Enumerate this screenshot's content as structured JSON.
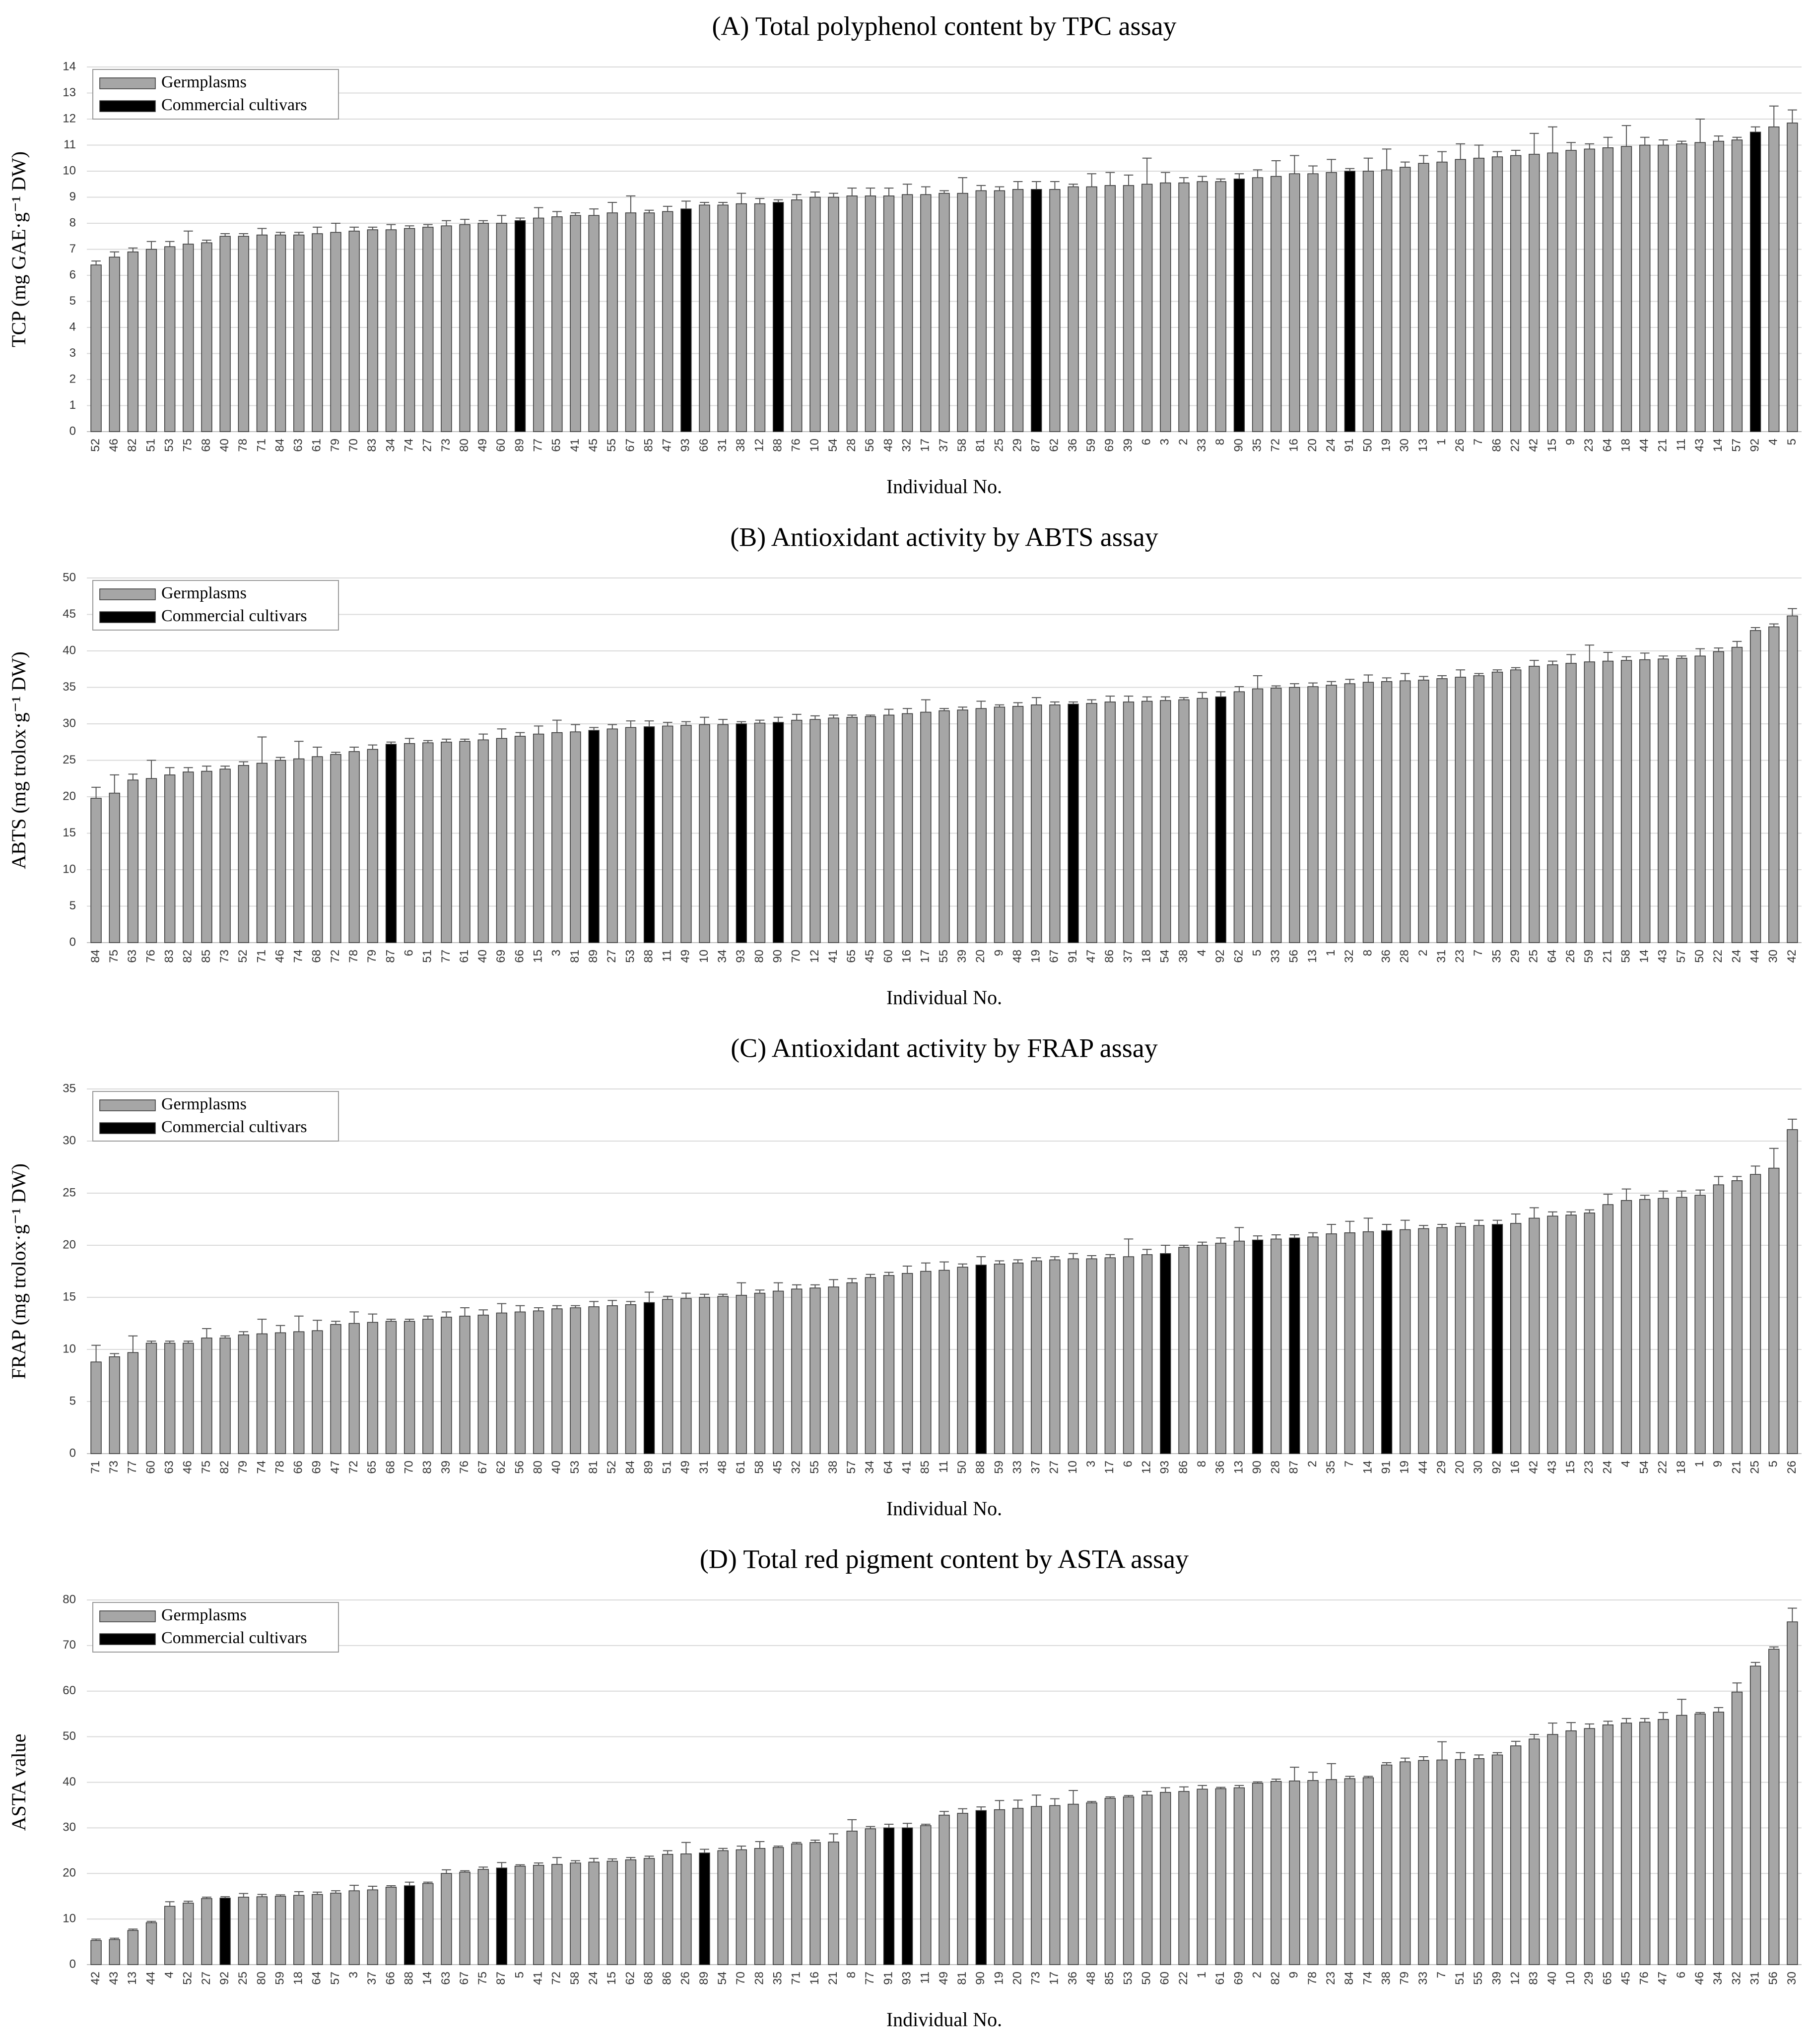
{
  "chart_data": [
    {
      "type": "bar",
      "title": "(A) Total polyphenol content by TPC assay",
      "xlabel": "Individual No.",
      "ylabel": "TCP (mg GAE·g⁻¹ DW)",
      "series": [
        {
          "name": "Germplasms",
          "color": "#a6a6a6"
        },
        {
          "name": "Commercial cultivars",
          "color": "#000000",
          "categories": [
            "87",
            "88",
            "89",
            "90",
            "91",
            "92",
            "93"
          ]
        }
      ],
      "legend": "upper left",
      "grid": true,
      "ylim": [
        0,
        14
      ],
      "yticks": [
        0,
        1,
        2,
        3,
        4,
        5,
        6,
        7,
        8,
        9,
        10,
        11,
        12,
        13,
        14
      ],
      "categories": [
        "52",
        "46",
        "82",
        "51",
        "53",
        "75",
        "68",
        "40",
        "78",
        "71",
        "84",
        "63",
        "61",
        "79",
        "70",
        "83",
        "34",
        "74",
        "27",
        "73",
        "80",
        "49",
        "60",
        "89",
        "77",
        "65",
        "41",
        "45",
        "55",
        "67",
        "85",
        "47",
        "93",
        "66",
        "31",
        "38",
        "12",
        "88",
        "76",
        "10",
        "54",
        "28",
        "56",
        "48",
        "32",
        "17",
        "37",
        "58",
        "81",
        "25",
        "29",
        "87",
        "62",
        "36",
        "59",
        "69",
        "39",
        "6",
        "3",
        "2",
        "33",
        "8",
        "90",
        "35",
        "72",
        "16",
        "20",
        "24",
        "91",
        "50",
        "19",
        "30",
        "13",
        "1",
        "26",
        "7",
        "86",
        "22",
        "42",
        "15",
        "9",
        "23",
        "64",
        "18",
        "44",
        "21",
        "11",
        "43",
        "14",
        "57",
        "92",
        "4",
        "5"
      ],
      "values": [
        6.4,
        6.7,
        6.9,
        7.0,
        7.1,
        7.2,
        7.25,
        7.5,
        7.5,
        7.55,
        7.55,
        7.55,
        7.6,
        7.65,
        7.7,
        7.75,
        7.75,
        7.8,
        7.85,
        7.9,
        7.95,
        8.0,
        8.0,
        8.1,
        8.2,
        8.25,
        8.3,
        8.3,
        8.4,
        8.4,
        8.4,
        8.45,
        8.55,
        8.7,
        8.7,
        8.75,
        8.75,
        8.8,
        8.9,
        9.0,
        9.0,
        9.05,
        9.05,
        9.05,
        9.1,
        9.1,
        9.15,
        9.15,
        9.25,
        9.25,
        9.3,
        9.3,
        9.3,
        9.4,
        9.4,
        9.45,
        9.45,
        9.5,
        9.55,
        9.55,
        9.6,
        9.6,
        9.7,
        9.75,
        9.8,
        9.9,
        9.9,
        9.95,
        10.0,
        10.0,
        10.05,
        10.15,
        10.3,
        10.35,
        10.45,
        10.5,
        10.55,
        10.6,
        10.65,
        10.7,
        10.8,
        10.85,
        10.9,
        10.95,
        11.0,
        11.0,
        11.05,
        11.1,
        11.15,
        11.2,
        11.5,
        11.7,
        11.85
      ],
      "errors": [
        0.15,
        0.2,
        0.15,
        0.3,
        0.2,
        0.5,
        0.1,
        0.1,
        0.1,
        0.25,
        0.1,
        0.1,
        0.25,
        0.35,
        0.15,
        0.1,
        0.2,
        0.1,
        0.1,
        0.2,
        0.2,
        0.1,
        0.3,
        0.1,
        0.4,
        0.2,
        0.1,
        0.25,
        0.4,
        0.65,
        0.1,
        0.2,
        0.3,
        0.1,
        0.1,
        0.4,
        0.2,
        0.1,
        0.2,
        0.2,
        0.15,
        0.3,
        0.3,
        0.3,
        0.4,
        0.3,
        0.1,
        0.6,
        0.2,
        0.15,
        0.3,
        0.3,
        0.3,
        0.1,
        0.5,
        0.5,
        0.4,
        1.0,
        0.4,
        0.2,
        0.2,
        0.1,
        0.2,
        0.3,
        0.6,
        0.7,
        0.3,
        0.5,
        0.1,
        0.5,
        0.8,
        0.2,
        0.3,
        0.4,
        0.6,
        0.5,
        0.2,
        0.2,
        0.8,
        1.0,
        0.3,
        0.2,
        0.4,
        0.8,
        0.3,
        0.2,
        0.1,
        0.9,
        0.2,
        0.1,
        0.2,
        0.8,
        0.5
      ]
    },
    {
      "type": "bar",
      "title": "(B) Antioxidant activity by ABTS assay",
      "xlabel": "Individual No.",
      "ylabel": "ABTS (mg trolox·g⁻¹ DW)",
      "series": [
        {
          "name": "Germplasms",
          "color": "#a6a6a6"
        },
        {
          "name": "Commercial cultivars",
          "color": "#000000",
          "categories": [
            "87",
            "88",
            "89",
            "90",
            "91",
            "92",
            "93"
          ]
        }
      ],
      "legend": "upper left",
      "grid": true,
      "ylim": [
        0,
        50
      ],
      "yticks": [
        0,
        5,
        10,
        15,
        20,
        25,
        30,
        35,
        40,
        45,
        50
      ],
      "categories": [
        "84",
        "75",
        "63",
        "76",
        "83",
        "82",
        "85",
        "73",
        "52",
        "71",
        "46",
        "74",
        "68",
        "72",
        "78",
        "79",
        "87",
        "6",
        "51",
        "77",
        "61",
        "40",
        "69",
        "66",
        "15",
        "3",
        "81",
        "89",
        "27",
        "53",
        "88",
        "11",
        "49",
        "10",
        "34",
        "93",
        "80",
        "90",
        "70",
        "12",
        "41",
        "65",
        "45",
        "60",
        "16",
        "17",
        "55",
        "39",
        "20",
        "9",
        "48",
        "19",
        "67",
        "91",
        "47",
        "86",
        "37",
        "18",
        "54",
        "38",
        "4",
        "92",
        "62",
        "5",
        "33",
        "56",
        "13",
        "1",
        "32",
        "8",
        "36",
        "28",
        "2",
        "31",
        "23",
        "7",
        "35",
        "29",
        "25",
        "64",
        "26",
        "59",
        "21",
        "58",
        "14",
        "43",
        "57",
        "50",
        "22",
        "24",
        "44",
        "30",
        "42"
      ],
      "values": [
        19.8,
        20.5,
        22.3,
        22.5,
        23.0,
        23.4,
        23.5,
        23.8,
        24.3,
        24.6,
        25.0,
        25.2,
        25.5,
        25.8,
        26.2,
        26.5,
        27.2,
        27.3,
        27.4,
        27.5,
        27.6,
        27.8,
        28.0,
        28.3,
        28.6,
        28.8,
        28.9,
        29.1,
        29.3,
        29.5,
        29.6,
        29.7,
        29.8,
        29.9,
        29.9,
        30.0,
        30.1,
        30.2,
        30.5,
        30.6,
        30.8,
        30.9,
        31.0,
        31.2,
        31.4,
        31.6,
        31.8,
        31.9,
        32.1,
        32.3,
        32.4,
        32.6,
        32.6,
        32.7,
        32.8,
        33.0,
        33.0,
        33.1,
        33.2,
        33.3,
        33.5,
        33.7,
        34.4,
        34.8,
        34.9,
        35.0,
        35.1,
        35.3,
        35.5,
        35.7,
        35.8,
        35.9,
        36.0,
        36.2,
        36.4,
        36.6,
        37.1,
        37.4,
        37.9,
        38.1,
        38.3,
        38.5,
        38.6,
        38.7,
        38.8,
        38.9,
        39.0,
        39.3,
        39.9,
        40.5,
        42.8,
        43.3,
        44.8
      ],
      "errors": [
        1.5,
        2.5,
        0.8,
        2.5,
        1.0,
        0.6,
        0.7,
        0.4,
        0.5,
        3.6,
        0.4,
        2.4,
        1.3,
        0.3,
        0.6,
        0.6,
        0.3,
        0.7,
        0.3,
        0.4,
        0.3,
        0.8,
        1.3,
        0.5,
        1.1,
        1.7,
        1.0,
        0.4,
        0.6,
        0.9,
        0.8,
        0.5,
        0.5,
        1.0,
        0.7,
        0.3,
        0.4,
        0.7,
        0.8,
        0.5,
        0.4,
        0.3,
        0.2,
        0.8,
        0.7,
        1.7,
        0.3,
        0.4,
        1.0,
        0.3,
        0.5,
        1.0,
        0.4,
        0.3,
        0.5,
        0.8,
        0.8,
        0.6,
        0.5,
        0.3,
        0.8,
        0.7,
        0.7,
        1.8,
        0.3,
        0.5,
        0.5,
        0.5,
        0.6,
        1.0,
        0.5,
        1.0,
        0.5,
        0.4,
        1.0,
        0.3,
        0.3,
        0.3,
        0.8,
        0.5,
        1.2,
        2.3,
        1.2,
        0.5,
        0.9,
        0.4,
        0.3,
        1.0,
        0.5,
        0.8,
        0.4,
        0.4,
        1.0
      ]
    },
    {
      "type": "bar",
      "title": "(C) Antioxidant activity by FRAP assay",
      "xlabel": "Individual No.",
      "ylabel": "FRAP (mg trolox·g⁻¹ DW)",
      "series": [
        {
          "name": "Germplasms",
          "color": "#a6a6a6"
        },
        {
          "name": "Commercial cultivars",
          "color": "#000000",
          "categories": [
            "87",
            "88",
            "89",
            "90",
            "91",
            "92",
            "93"
          ]
        }
      ],
      "legend": "upper left",
      "grid": true,
      "ylim": [
        0,
        35
      ],
      "yticks": [
        0,
        5,
        10,
        15,
        20,
        25,
        30,
        35
      ],
      "categories": [
        "71",
        "73",
        "77",
        "60",
        "63",
        "46",
        "75",
        "82",
        "79",
        "74",
        "78",
        "66",
        "69",
        "47",
        "72",
        "65",
        "68",
        "70",
        "83",
        "39",
        "76",
        "67",
        "62",
        "56",
        "80",
        "40",
        "53",
        "81",
        "52",
        "84",
        "89",
        "51",
        "49",
        "31",
        "48",
        "61",
        "58",
        "45",
        "32",
        "55",
        "38",
        "57",
        "34",
        "64",
        "41",
        "85",
        "11",
        "50",
        "88",
        "59",
        "33",
        "37",
        "27",
        "10",
        "3",
        "17",
        "6",
        "12",
        "93",
        "86",
        "8",
        "36",
        "13",
        "90",
        "28",
        "87",
        "2",
        "35",
        "7",
        "14",
        "91",
        "19",
        "44",
        "29",
        "20",
        "30",
        "92",
        "16",
        "42",
        "43",
        "15",
        "23",
        "24",
        "4",
        "54",
        "22",
        "18",
        "1",
        "9",
        "21",
        "25",
        "5",
        "26"
      ],
      "values": [
        8.8,
        9.3,
        9.7,
        10.6,
        10.6,
        10.6,
        11.1,
        11.1,
        11.4,
        11.5,
        11.6,
        11.7,
        11.8,
        12.4,
        12.5,
        12.6,
        12.7,
        12.7,
        12.9,
        13.1,
        13.2,
        13.3,
        13.5,
        13.6,
        13.7,
        13.9,
        14.0,
        14.1,
        14.2,
        14.3,
        14.5,
        14.8,
        14.9,
        15.0,
        15.1,
        15.2,
        15.4,
        15.6,
        15.8,
        15.9,
        16.0,
        16.4,
        16.9,
        17.1,
        17.3,
        17.5,
        17.6,
        17.9,
        18.1,
        18.2,
        18.3,
        18.5,
        18.6,
        18.7,
        18.7,
        18.8,
        18.9,
        19.1,
        19.2,
        19.8,
        20.0,
        20.2,
        20.4,
        20.5,
        20.6,
        20.7,
        20.8,
        21.1,
        21.2,
        21.3,
        21.4,
        21.5,
        21.6,
        21.7,
        21.8,
        21.9,
        22.0,
        22.1,
        22.6,
        22.8,
        22.9,
        23.1,
        23.9,
        24.3,
        24.4,
        24.5,
        24.6,
        24.8,
        25.8,
        26.2,
        26.8,
        27.4,
        31.1
      ],
      "errors": [
        1.6,
        0.3,
        1.6,
        0.2,
        0.2,
        0.2,
        0.9,
        0.2,
        0.3,
        1.4,
        0.7,
        1.5,
        1.0,
        0.3,
        1.1,
        0.8,
        0.2,
        0.2,
        0.3,
        0.5,
        0.8,
        0.5,
        0.9,
        0.6,
        0.3,
        0.3,
        0.2,
        0.5,
        0.5,
        0.3,
        1.0,
        0.3,
        0.5,
        0.3,
        0.2,
        1.2,
        0.3,
        0.8,
        0.4,
        0.3,
        0.7,
        0.4,
        0.3,
        0.3,
        0.7,
        0.8,
        0.8,
        0.3,
        0.8,
        0.3,
        0.3,
        0.3,
        0.3,
        0.5,
        0.3,
        0.3,
        1.7,
        0.5,
        0.8,
        0.2,
        0.3,
        0.5,
        1.3,
        0.4,
        0.4,
        0.3,
        0.4,
        0.9,
        1.1,
        1.3,
        0.6,
        0.9,
        0.3,
        0.3,
        0.3,
        0.5,
        0.4,
        0.9,
        1.0,
        0.4,
        0.3,
        0.3,
        1.0,
        1.1,
        0.4,
        0.7,
        0.6,
        0.5,
        0.8,
        0.4,
        0.8,
        1.9,
        1.0
      ]
    },
    {
      "type": "bar",
      "title": "(D) Total red pigment content by ASTA assay",
      "xlabel": "Individual No.",
      "ylabel": "ASTA value",
      "series": [
        {
          "name": "Germplasms",
          "color": "#a6a6a6"
        },
        {
          "name": "Commercial cultivars",
          "color": "#000000",
          "categories": [
            "87",
            "88",
            "89",
            "90",
            "91",
            "92",
            "93"
          ]
        }
      ],
      "legend": "upper left",
      "grid": true,
      "ylim": [
        0,
        80
      ],
      "yticks": [
        0,
        10,
        20,
        30,
        40,
        50,
        60,
        70,
        80
      ],
      "categories": [
        "42",
        "43",
        "13",
        "44",
        "4",
        "52",
        "27",
        "92",
        "25",
        "80",
        "59",
        "18",
        "64",
        "57",
        "3",
        "37",
        "66",
        "88",
        "14",
        "63",
        "67",
        "75",
        "87",
        "5",
        "41",
        "72",
        "58",
        "24",
        "15",
        "62",
        "68",
        "86",
        "26",
        "89",
        "54",
        "70",
        "28",
        "35",
        "71",
        "16",
        "21",
        "8",
        "77",
        "91",
        "93",
        "11",
        "49",
        "81",
        "90",
        "19",
        "20",
        "73",
        "17",
        "36",
        "48",
        "85",
        "53",
        "50",
        "60",
        "22",
        "1",
        "61",
        "69",
        "2",
        "82",
        "9",
        "78",
        "23",
        "84",
        "74",
        "38",
        "79",
        "33",
        "7",
        "51",
        "55",
        "39",
        "12",
        "83",
        "40",
        "10",
        "29",
        "65",
        "45",
        "76",
        "47",
        "6",
        "46",
        "34",
        "32",
        "31",
        "56",
        "30"
      ],
      "values": [
        5.3,
        5.5,
        7.5,
        9.2,
        12.8,
        13.5,
        14.5,
        14.6,
        14.8,
        14.9,
        15.0,
        15.2,
        15.4,
        15.7,
        16.2,
        16.4,
        17.0,
        17.3,
        17.8,
        20.0,
        20.3,
        20.9,
        21.2,
        21.6,
        21.8,
        22.0,
        22.3,
        22.5,
        22.7,
        23.0,
        23.3,
        24.2,
        24.3,
        24.5,
        25.0,
        25.2,
        25.5,
        25.7,
        26.5,
        26.8,
        26.9,
        29.3,
        29.8,
        30.0,
        30.0,
        30.5,
        32.8,
        33.2,
        33.8,
        34.0,
        34.3,
        34.7,
        34.9,
        35.2,
        35.5,
        36.5,
        36.8,
        37.2,
        37.8,
        38.0,
        38.5,
        38.6,
        38.8,
        39.8,
        40.2,
        40.3,
        40.4,
        40.6,
        40.8,
        41.0,
        43.8,
        44.5,
        44.8,
        44.9,
        45.0,
        45.2,
        46.0,
        48.0,
        49.5,
        50.5,
        51.3,
        51.8,
        52.6,
        53.0,
        53.2,
        53.8,
        54.7,
        55.0,
        55.4,
        59.8,
        65.5,
        69.2,
        75.2
      ],
      "errors": [
        0.3,
        0.3,
        0.3,
        0.3,
        1.0,
        0.4,
        0.3,
        0.3,
        0.8,
        0.5,
        0.3,
        0.8,
        0.5,
        0.5,
        1.2,
        0.8,
        0.3,
        0.8,
        0.3,
        0.8,
        0.3,
        0.5,
        1.2,
        0.3,
        0.5,
        1.5,
        0.5,
        0.8,
        0.5,
        0.5,
        0.5,
        0.8,
        2.5,
        0.8,
        0.5,
        0.8,
        1.5,
        0.3,
        0.3,
        0.5,
        1.8,
        2.5,
        0.5,
        0.8,
        1.0,
        0.3,
        0.8,
        1.0,
        0.8,
        2.0,
        1.8,
        2.5,
        1.5,
        3.0,
        0.3,
        0.3,
        0.3,
        0.8,
        1.0,
        1.0,
        0.8,
        0.3,
        0.5,
        0.3,
        0.5,
        3.0,
        1.8,
        3.5,
        0.5,
        0.3,
        0.5,
        0.8,
        0.8,
        4.0,
        1.5,
        0.8,
        0.5,
        1.0,
        1.0,
        2.5,
        1.8,
        1.0,
        0.8,
        1.0,
        0.8,
        1.5,
        3.5,
        0.3,
        1.0,
        2.0,
        0.8,
        0.5,
        3.0
      ]
    }
  ]
}
